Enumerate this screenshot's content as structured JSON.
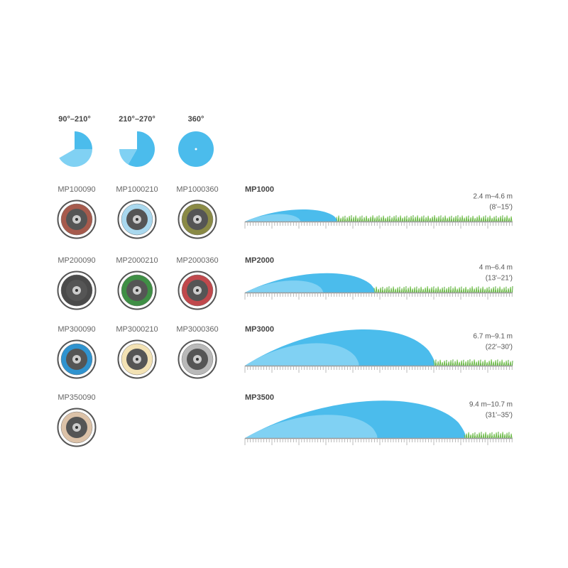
{
  "arc_patterns": [
    {
      "label": "90°–210°"
    },
    {
      "label": "210°–270°"
    },
    {
      "label": "360°"
    }
  ],
  "nozzles": [
    [
      {
        "label": "MP100090",
        "color": "#a65a4c"
      },
      {
        "label": "MP1000210",
        "color": "#a9d8ee"
      },
      {
        "label": "MP1000360",
        "color": "#8a8a45"
      }
    ],
    [
      {
        "label": "MP200090",
        "color": "#4a4a4a"
      },
      {
        "label": "MP2000210",
        "color": "#3f8f45"
      },
      {
        "label": "MP2000360",
        "color": "#c0484c"
      }
    ],
    [
      {
        "label": "MP300090",
        "color": "#2f93cf"
      },
      {
        "label": "MP3000210",
        "color": "#f3e2b4"
      },
      {
        "label": "MP3000360",
        "color": "#b9b9b9"
      }
    ],
    [
      {
        "label": "MP350090",
        "color": "#dcc2a8"
      }
    ]
  ],
  "ranges": [
    {
      "model": "MP1000",
      "metric": "2.4 m–4.6 m",
      "imperial": "(8'–15')"
    },
    {
      "model": "MP2000",
      "metric": "4 m–6.4 m",
      "imperial": "(13'–21')"
    },
    {
      "model": "MP3000",
      "metric": "6.7 m–9.1 m",
      "imperial": "(22'–30')"
    },
    {
      "model": "MP3500",
      "metric": "9.4 m–10.7 m",
      "imperial": "(31'–35')"
    }
  ]
}
